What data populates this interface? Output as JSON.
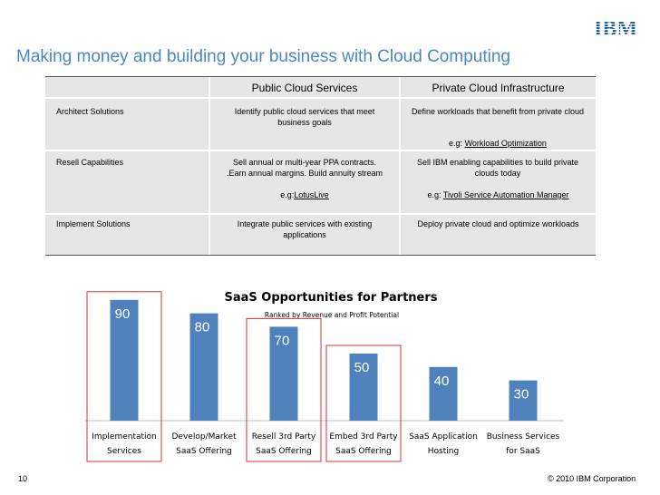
{
  "header": {
    "logo_text": "IBM",
    "title": "Making money and building your business with Cloud Computing"
  },
  "table": {
    "columns": [
      "Public Cloud Services",
      "Private Cloud Infrastructure"
    ],
    "rows": [
      {
        "label": "Architect Solutions",
        "public": "Identify public cloud services that meet business goals",
        "private": "Define workloads that benefit from private cloud",
        "private_eg_prefix": "e.g: ",
        "private_eg_link": "Workload Optimization"
      },
      {
        "label": "Resell Capabilities",
        "public_line1": "Sell annual or multi-year PPA contracts.",
        "public_line2": ".Earn annual margins. Build annuity stream",
        "public_eg_prefix": "e.g:",
        "public_eg_link": "LotusLive",
        "private": "Sell IBM enabling capabilities to build private clouds today",
        "private_eg_prefix": "e.g: ",
        "private_eg_link": "Tivoli Service Automation Manager"
      },
      {
        "label": "Implement Solutions",
        "public": "Integrate public services with existing applications",
        "private": "Deploy private cloud and optimize workloads"
      }
    ]
  },
  "chart_data": {
    "type": "bar",
    "title": "SaaS Opportunities for Partners",
    "subtitle": "Ranked by Revenue and Profit Potential",
    "categories": [
      [
        "Implementation",
        "Services"
      ],
      [
        "Develop/Market",
        "SaaS Offering"
      ],
      [
        "Resell 3rd Party",
        "SaaS Offering"
      ],
      [
        "Embed 3rd Party",
        "SaaS Offering"
      ],
      [
        "SaaS Application",
        "Hosting"
      ],
      [
        "Business Services",
        "for SaaS"
      ]
    ],
    "values": [
      90,
      80,
      70,
      50,
      40,
      30
    ],
    "highlighted": [
      0,
      2,
      3
    ],
    "ylim": [
      0,
      100
    ],
    "grid": false,
    "bar_color": "#4f81bd",
    "highlight_color": "#e0302b"
  },
  "footer": {
    "page_number": "10",
    "copyright": "© 2010 IBM Corporation"
  }
}
